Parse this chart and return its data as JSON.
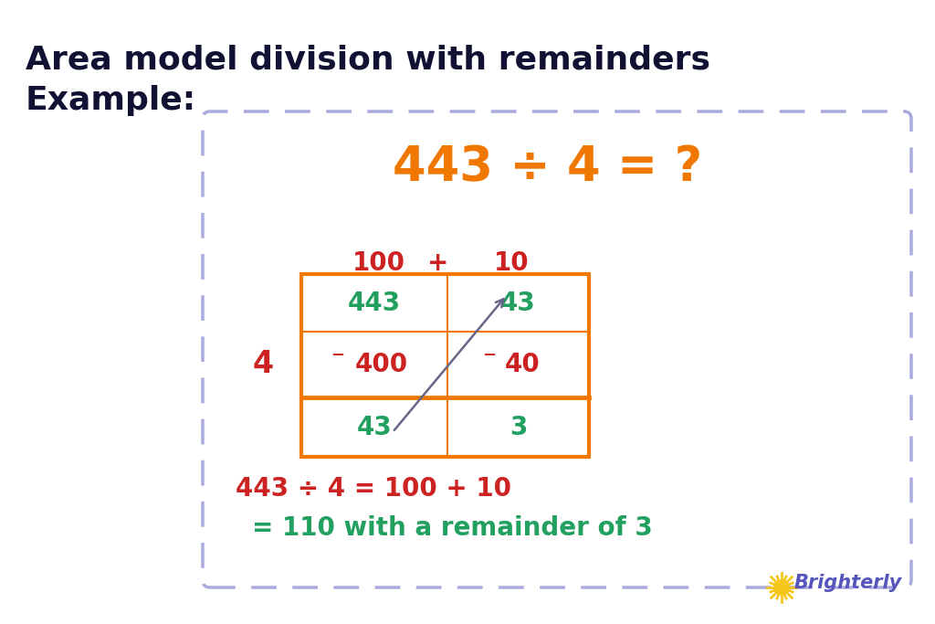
{
  "title_line1": "Area model division with remainders",
  "title_line2": "Example:",
  "title_color": "#111133",
  "title_fontsize": 26,
  "big_equation": "443 ÷ 4 = ?",
  "big_equation_color": "#f07800",
  "big_equation_fontsize": 38,
  "col_labels_color": "#cc2222",
  "row_label": "4",
  "row_label_color": "#cc2222",
  "row_label_fontsize": 24,
  "box_border_color": "#f07800",
  "dashed_box_color": "#aaaadd",
  "cell_top_left": "443",
  "cell_top_right": "43",
  "cell_mid_left": "400",
  "cell_mid_right": "40",
  "cell_bot_left": "43",
  "cell_bot_right": "3",
  "cell_top_color": "#22a060",
  "cell_mid_color": "#cc2222",
  "cell_bot_color": "#22a060",
  "minus_color": "#cc2222",
  "equation_line1": "443 ÷ 4 = 100 + 10",
  "equation_line1_color": "#cc2222",
  "equation_line2": "= 110 with a remainder of 3",
  "equation_line2_color": "#22a060",
  "equation_fontsize": 20,
  "bg_color": "#ffffff",
  "arrow_color": "#666688",
  "col_label_fontsize": 20,
  "cell_fontsize": 20
}
